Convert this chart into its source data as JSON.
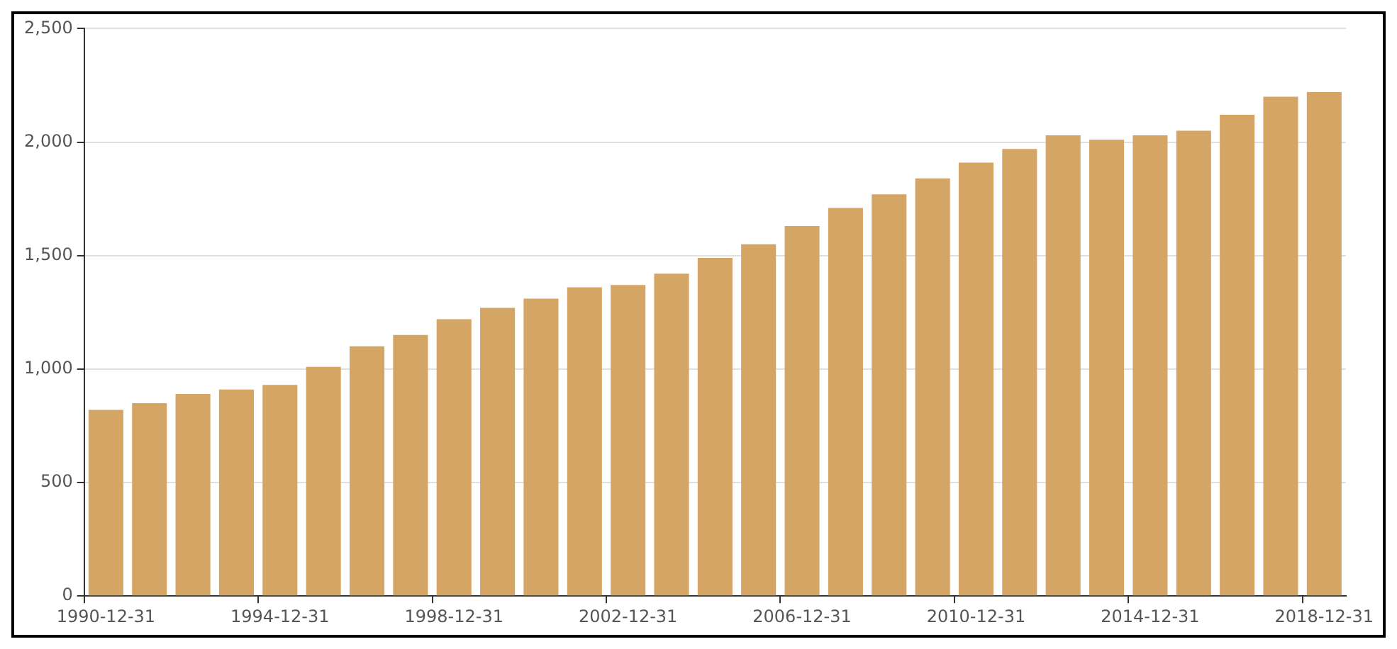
{
  "chart_data": {
    "type": "bar",
    "categories": [
      "1990-12-31",
      null,
      null,
      null,
      "1994-12-31",
      null,
      null,
      null,
      "1998-12-31",
      null,
      null,
      null,
      "2002-12-31",
      null,
      null,
      null,
      "2006-12-31",
      null,
      null,
      null,
      "2010-12-31",
      null,
      null,
      null,
      "2014-12-31",
      null,
      null,
      null,
      "2018-12-31"
    ],
    "values": [
      820,
      850,
      890,
      910,
      930,
      1010,
      1100,
      1150,
      1220,
      1270,
      1310,
      1360,
      1370,
      1420,
      1490,
      1550,
      1630,
      1710,
      1770,
      1840,
      1910,
      1970,
      2030,
      2010,
      2030,
      2050,
      2120,
      2200,
      2220
    ],
    "color": "#d4a565",
    "ylim": [
      0,
      2500
    ],
    "yticks": [
      0,
      500,
      {
        "value": 1000,
        "label": "1,000"
      },
      {
        "value": 1500,
        "label": "1,500"
      },
      {
        "value": 2000,
        "label": "2,000"
      },
      {
        "value": 2500,
        "label": "2,500"
      }
    ],
    "grid": "y"
  }
}
